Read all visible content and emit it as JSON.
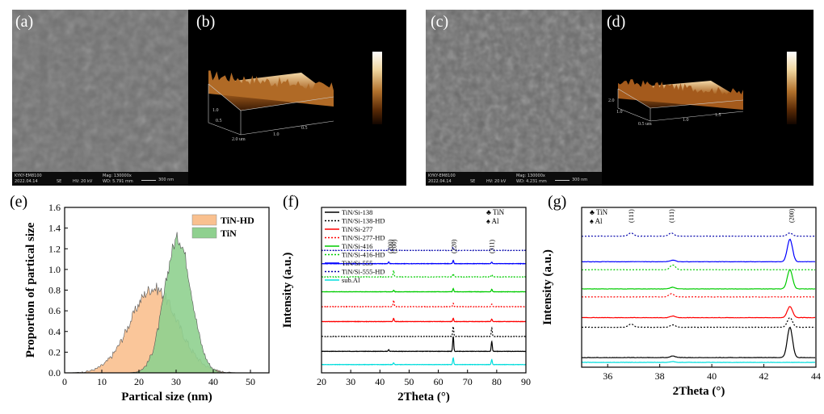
{
  "panels": {
    "a": {
      "label": "(a)",
      "sem": {
        "device": "KYKY-EM8100",
        "date": "2022.04.14",
        "mode": "SE",
        "hv": "HV: 20 kV",
        "mag": "Mag: 130000x",
        "wd": "WD: 5.791 mm",
        "scale": "300 nm"
      }
    },
    "b": {
      "label": "(b)"
    },
    "c": {
      "label": "(c)",
      "sem": {
        "device": "KYKY-EM8100",
        "date": "2022.04.14",
        "mode": "SE",
        "hv": "HV: 20 kV",
        "mag": "Mag: 130000x",
        "wd": "WD: 4.231 mm",
        "scale": "300 nm"
      }
    },
    "d": {
      "label": "(d)"
    }
  },
  "chart_data": [
    {
      "id": "e",
      "label": "(e)",
      "type": "area",
      "xlabel": "Partical size (nm)",
      "ylabel": "Proportion of  partical size",
      "xlim": [
        0,
        55
      ],
      "ylim": [
        0,
        1.6
      ],
      "xticks": [
        "0",
        "10",
        "20",
        "30",
        "40",
        "50"
      ],
      "yticks": [
        "0.0",
        "0.2",
        "0.4",
        "0.6",
        "0.8",
        "1.0",
        "1.2",
        "1.4",
        "1.6"
      ],
      "legend": "top-right",
      "series": [
        {
          "name": "TiN-HD",
          "color": "#f9c08f",
          "mean": 24,
          "sd": 6.3,
          "peak": 0.82,
          "noise": 0.06
        },
        {
          "name": "TiN",
          "color": "#8fd08f",
          "mean": 30.5,
          "sd": 3.6,
          "peak": 1.3,
          "noise": 0.07
        }
      ]
    },
    {
      "id": "f",
      "label": "(f)",
      "type": "line",
      "xlabel": "2Theta (°)",
      "ylabel": "Intensity (a.u.)",
      "xlim": [
        20,
        90
      ],
      "xticks": [
        "20",
        "30",
        "40",
        "50",
        "60",
        "70",
        "80",
        "90"
      ],
      "legend_symbols": [
        {
          "symbol": "♣",
          "text": "TiN"
        },
        {
          "symbol": "♠",
          "text": "Al"
        }
      ],
      "peak_labels": [
        {
          "x": 43.5,
          "text": "(200)"
        },
        {
          "x": 44.8,
          "text": "(200)"
        },
        {
          "x": 65.2,
          "text": "(220)"
        },
        {
          "x": 78.3,
          "text": "(311)"
        }
      ],
      "series": [
        {
          "name": "TiN/Si-138",
          "color": "#000000",
          "dash": false,
          "offset": 0.13,
          "peaks": [
            [
              43.0,
              0.01
            ],
            [
              65.1,
              0.09
            ],
            [
              78.3,
              0.06
            ]
          ]
        },
        {
          "name": "TiN/Si-138-HD",
          "color": "#000000",
          "dash": true,
          "offset": 0.22,
          "peaks": [
            [
              65.1,
              0.06
            ],
            [
              78.3,
              0.05
            ]
          ]
        },
        {
          "name": "TiN/Si-277",
          "color": "#ff0000",
          "dash": false,
          "offset": 0.31,
          "peaks": [
            [
              44.7,
              0.02
            ],
            [
              65.1,
              0.02
            ],
            [
              78.3,
              0.015
            ]
          ]
        },
        {
          "name": "TiN/Si-277-HD",
          "color": "#ff0000",
          "dash": true,
          "offset": 0.4,
          "peaks": [
            [
              44.7,
              0.04
            ],
            [
              65.1,
              0.02
            ],
            [
              78.3,
              0.015
            ]
          ]
        },
        {
          "name": "TiN/Si-416",
          "color": "#00cc00",
          "dash": false,
          "offset": 0.49,
          "peaks": [
            [
              44.7,
              0.01
            ],
            [
              65.1,
              0.02
            ],
            [
              78.3,
              0.015
            ]
          ]
        },
        {
          "name": "TiN/Si-416-HD",
          "color": "#00cc00",
          "dash": true,
          "offset": 0.58,
          "peaks": [
            [
              44.7,
              0.04
            ],
            [
              65.1,
              0.02
            ],
            [
              78.3,
              0.015
            ]
          ]
        },
        {
          "name": "TiN/Si-555",
          "color": "#0000ff",
          "dash": false,
          "offset": 0.66,
          "peaks": [
            [
              43.0,
              0.01
            ],
            [
              65.1,
              0.02
            ],
            [
              78.3,
              0.01
            ]
          ]
        },
        {
          "name": "TiN/Si-555-HD",
          "color": "#0000aa",
          "dash": true,
          "offset": 0.74,
          "peaks": [
            [
              43.0,
              0.01
            ],
            [
              65.1,
              0.02
            ],
            [
              78.3,
              0.01
            ]
          ]
        },
        {
          "name": "sub.Al",
          "color": "#00dddd",
          "dash": false,
          "offset": 0.05,
          "peaks": [
            [
              44.7,
              0.01
            ],
            [
              65.1,
              0.04
            ],
            [
              78.3,
              0.03
            ]
          ]
        }
      ]
    },
    {
      "id": "g",
      "label": "(g)",
      "type": "line",
      "xlabel": "2Theta (°)",
      "ylabel": "Intensity (a.u.)",
      "xlim": [
        35,
        44
      ],
      "xticks": [
        "36",
        "38",
        "40",
        "42",
        "44"
      ],
      "legend_symbols": [
        {
          "symbol": "♣",
          "text": "TiN"
        },
        {
          "symbol": "♠",
          "text": "Al"
        }
      ],
      "peak_labels": [
        {
          "x": 36.9,
          "text": "(111)"
        },
        {
          "x": 38.45,
          "text": "(111)"
        },
        {
          "x": 43.05,
          "text": "(200)"
        }
      ],
      "series": [
        {
          "name": "sub.Al",
          "color": "#00dddd",
          "dash": false,
          "offset": 0.03,
          "peaks": [
            [
              38.5,
              0.005
            ]
          ]
        },
        {
          "name": "TiN/Si-138",
          "color": "#000000",
          "dash": false,
          "offset": 0.06,
          "peaks": [
            [
              38.5,
              0.01
            ],
            [
              43.0,
              0.19
            ]
          ]
        },
        {
          "name": "TiN/Si-138-HD",
          "color": "#000000",
          "dash": true,
          "offset": 0.25,
          "peaks": [
            [
              36.9,
              0.02
            ],
            [
              38.5,
              0.015
            ],
            [
              43.0,
              0.06
            ]
          ]
        },
        {
          "name": "TiN/Si-277",
          "color": "#ff0000",
          "dash": false,
          "offset": 0.31,
          "peaks": [
            [
              38.5,
              0.01
            ],
            [
              43.0,
              0.07
            ]
          ]
        },
        {
          "name": "TiN/Si-277-HD",
          "color": "#ff0000",
          "dash": true,
          "offset": 0.44,
          "peaks": [
            [
              38.45,
              0.02
            ]
          ]
        },
        {
          "name": "TiN/Si-416",
          "color": "#00cc00",
          "dash": false,
          "offset": 0.49,
          "peaks": [
            [
              38.5,
              0.01
            ],
            [
              43.0,
              0.12
            ]
          ]
        },
        {
          "name": "TiN/Si-416-HD",
          "color": "#00cc00",
          "dash": true,
          "offset": 0.61,
          "peaks": [
            [
              38.5,
              0.03
            ]
          ]
        },
        {
          "name": "TiN/Si-555",
          "color": "#0000ff",
          "dash": false,
          "offset": 0.66,
          "peaks": [
            [
              38.5,
              0.01
            ],
            [
              43.0,
              0.14
            ]
          ]
        },
        {
          "name": "TiN/Si-555-HD",
          "color": "#0000aa",
          "dash": true,
          "offset": 0.82,
          "peaks": [
            [
              36.9,
              0.02
            ],
            [
              38.45,
              0.02
            ],
            [
              43.0,
              0.02
            ]
          ]
        }
      ]
    }
  ]
}
